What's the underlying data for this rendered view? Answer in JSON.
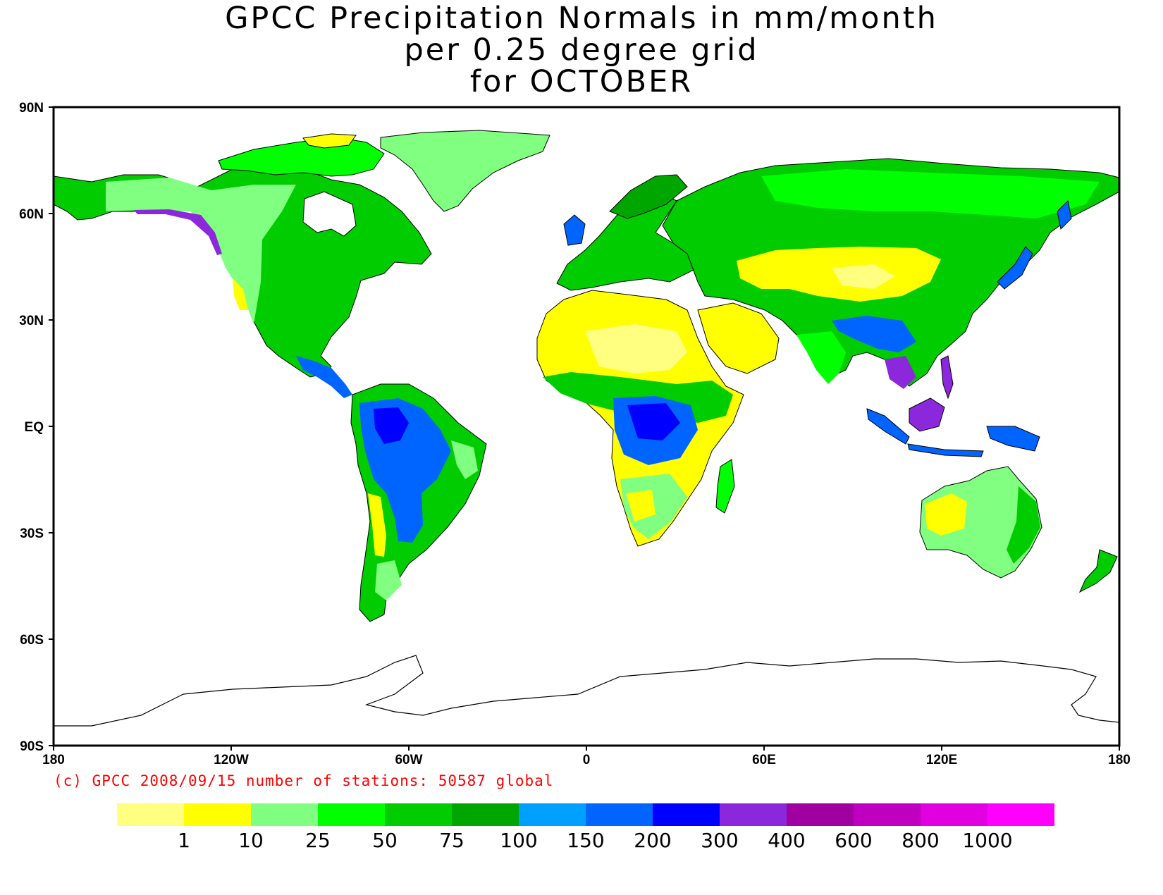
{
  "title": {
    "line1": "GPCC Precipitation Normals in mm/month",
    "line2": "per 0.25 degree grid",
    "line3": "for OCTOBER"
  },
  "axes": {
    "y_ticks": [
      "90N",
      "60N",
      "30N",
      "EQ",
      "30S",
      "60S",
      "90S"
    ],
    "x_ticks": [
      "180",
      "120W",
      "60W",
      "0",
      "60E",
      "120E",
      "180"
    ]
  },
  "credit": "(c) GPCC 2008/09/15 number of stations: 50587 global",
  "legend": {
    "colors": [
      "#ffff80",
      "#ffff00",
      "#80ff80",
      "#00ff00",
      "#00cc00",
      "#00a600",
      "#00a0ff",
      "#0064ff",
      "#0000ff",
      "#8c28dc",
      "#a000a0",
      "#c000c0",
      "#e000e0",
      "#ff00ff"
    ],
    "labels": [
      "1",
      "10",
      "25",
      "50",
      "75",
      "100",
      "150",
      "200",
      "300",
      "400",
      "600",
      "800",
      "1000"
    ]
  },
  "map": {
    "lon_range": [
      -180,
      180
    ],
    "lat_range": [
      -90,
      90
    ]
  }
}
